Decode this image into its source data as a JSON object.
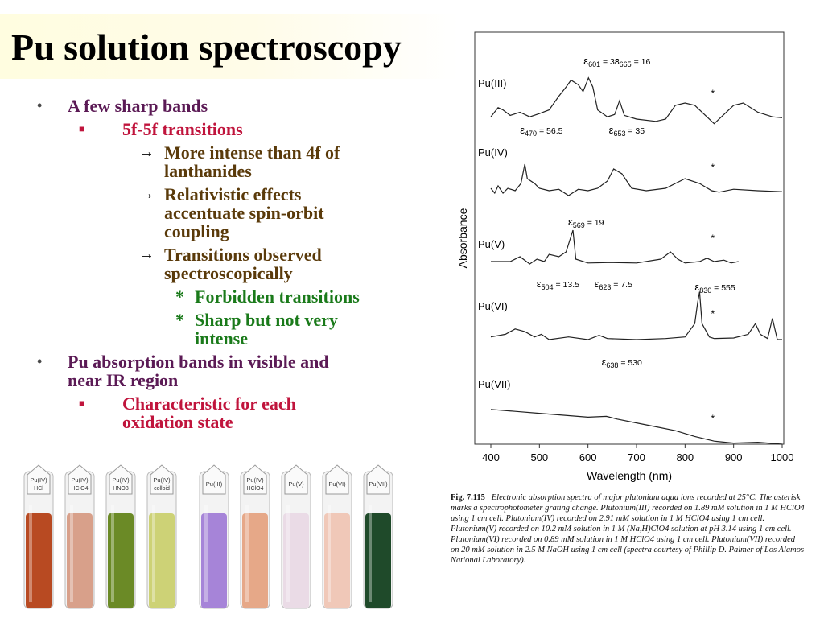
{
  "title": "Pu solution spectroscopy",
  "bullets": {
    "b1": "A few sharp bands",
    "b1_1": "5f-5f transitions",
    "b1_1_1a": "More intense than 4f of",
    "b1_1_1b": "lanthanides",
    "b1_1_2a": "Relativistic effects",
    "b1_1_2b": "accentuate spin-orbit",
    "b1_1_2c": "coupling",
    "b1_1_3a": "Transitions observed",
    "b1_1_3b": "spectroscopically",
    "b1_1_3_1": "Forbidden transitions",
    "b1_1_3_2a": "Sharp but not very",
    "b1_1_3_2b": "intense",
    "b2a": "Pu absorption bands in visible and",
    "b2b": "near IR region",
    "b2_1a": "Characteristic for each",
    "b2_1b": "oxidation state",
    "mark_l1": "•",
    "mark_l2": "■",
    "mark_l3": "→",
    "mark_l4": "*"
  },
  "chart_data": {
    "type": "line",
    "xlabel": "Wavelength (nm)",
    "ylabel": "Absorbance",
    "xlim": [
      400,
      1000
    ],
    "xticks": [
      "400",
      "500",
      "600",
      "700",
      "800",
      "900",
      "1000"
    ],
    "series": [
      {
        "name": "Pu(III)",
        "annotations": [
          {
            "symbol": "ε",
            "sub": "601",
            "text": " = 38",
            "wavelength": 601
          },
          {
            "symbol": "ε",
            "sub": "665",
            "text": " = 16",
            "wavelength": 665
          }
        ]
      },
      {
        "name": "Pu(IV)",
        "annotations": [
          {
            "symbol": "ε",
            "sub": "470",
            "text": " = 56.5",
            "wavelength": 470
          },
          {
            "symbol": "ε",
            "sub": "653",
            "text": " = 35",
            "wavelength": 653
          }
        ]
      },
      {
        "name": "Pu(V)",
        "annotations": [
          {
            "symbol": "ε",
            "sub": "569",
            "text": " = 19",
            "wavelength": 569
          }
        ]
      },
      {
        "name": "Pu(VI)",
        "annotations": [
          {
            "symbol": "ε",
            "sub": "504",
            "text": " = 13.5",
            "wavelength": 504
          },
          {
            "symbol": "ε",
            "sub": "623",
            "text": " = 7.5",
            "wavelength": 623
          },
          {
            "symbol": "ε",
            "sub": "830",
            "text": " = 555",
            "wavelength": 830
          }
        ]
      },
      {
        "name": "Pu(VII)",
        "annotations": [
          {
            "symbol": "ε",
            "sub": "638",
            "text": " = 530",
            "wavelength": 638
          }
        ]
      }
    ],
    "grating_change_marker": "*"
  },
  "caption": {
    "figno": "Fig. 7.115",
    "text": "Electronic absorption spectra of major plutonium aqua ions recorded at 25°C. The asterisk marks a spectrophotometer grating change. Plutonium(III) recorded on 1.89 mM solution in 1 M HClO4 using 1 cm cell. Plutonium(IV) recorded on 2.91 mM solution in 1 M HClO4 using 1 cm cell. Plutonium(V) recorded on 10.2 mM solution in 1 M (Na,H)ClO4 solution at pH 3.14 using 1 cm cell. Plutonium(VI) recorded on 0.89 mM solution in 1 M HClO4 using 1 cm cell. Plutonium(VII) recorded on 20 mM solution in 2.5 M NaOH using 1 cm cell (spectra courtesy of Phillip D. Palmer of Los Alamos National Laboratory)."
  },
  "vials": [
    {
      "label1": "Pu(IV)",
      "label2": "HCl",
      "color": "#b84a22"
    },
    {
      "label1": "Pu(IV)",
      "label2": "HClO4",
      "color": "#d8a08a"
    },
    {
      "label1": "Pu(IV)",
      "label2": "HNO3",
      "color": "#6b8a26"
    },
    {
      "label1": "Pu(IV)",
      "label2": "colloid",
      "color": "#cdd276"
    },
    {
      "label1": "Pu(III)",
      "label2": "",
      "color": "#a684d8"
    },
    {
      "label1": "Pu(IV)",
      "label2": "HClO4",
      "color": "#e6a888"
    },
    {
      "label1": "Pu(V)",
      "label2": "",
      "color": "#eadbe6"
    },
    {
      "label1": "Pu(VI)",
      "label2": "",
      "color": "#f0c8b8"
    },
    {
      "label1": "Pu(VII)",
      "label2": "",
      "color": "#1f4a2a"
    }
  ]
}
